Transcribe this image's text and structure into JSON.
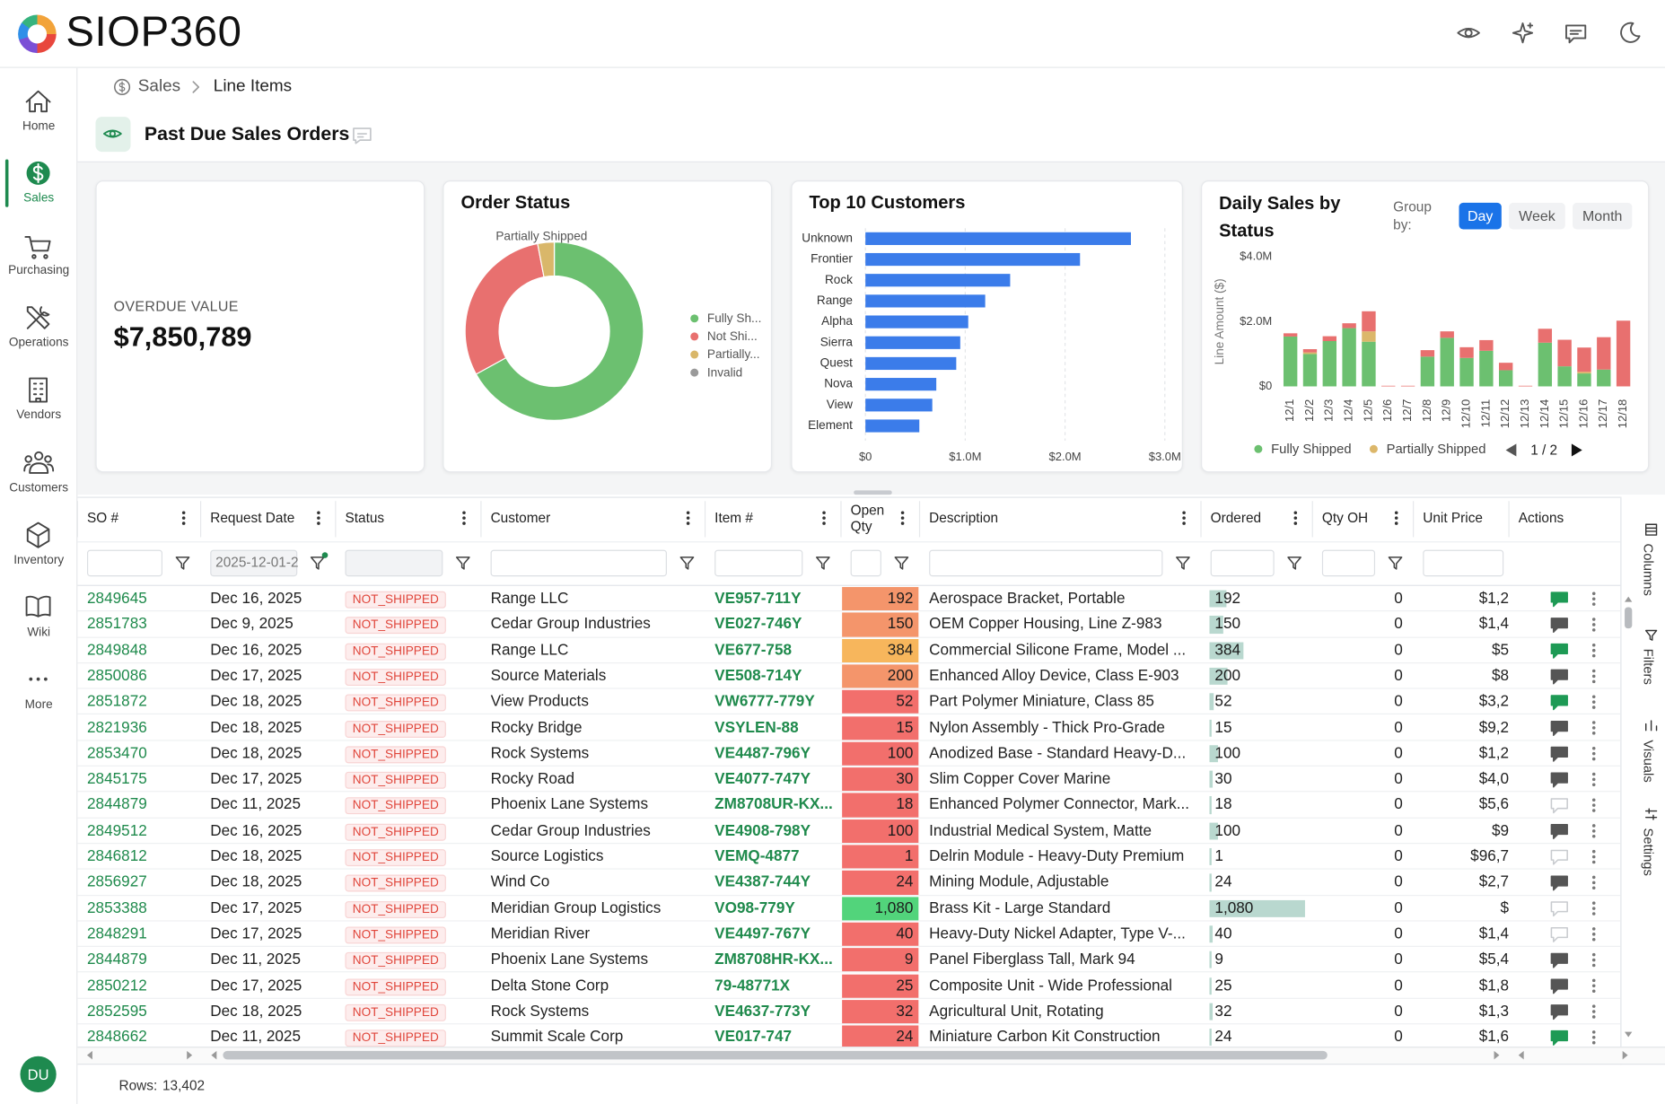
{
  "header": {
    "brand": "SIOP360"
  },
  "nav": {
    "items": [
      "Home",
      "Sales",
      "Purchasing",
      "Operations",
      "Vendors",
      "Customers",
      "Inventory",
      "Wiki",
      "More"
    ]
  },
  "user": {
    "initials": "DU"
  },
  "breadcrumb": [
    "Sales",
    "Line Items"
  ],
  "page": {
    "title": "Past Due Sales Orders"
  },
  "kpi": {
    "label": "OVERDUE VALUE",
    "value": "$7,850,789"
  },
  "chart_data": [
    {
      "type": "pie",
      "donut": true,
      "title": "Order Status",
      "annotation": "Partially Shipped",
      "categories": [
        "Fully Sh...",
        "Not Shi...",
        "Partially...",
        "Invalid"
      ],
      "values": [
        67,
        30,
        3,
        0
      ],
      "colors": [
        "#6cc070",
        "#e8706f",
        "#d9b76a",
        "#9a9a9a"
      ]
    },
    {
      "type": "bar",
      "orientation": "horizontal",
      "title": "Top 10 Customers",
      "categories": [
        "Unknown",
        "Frontier",
        "Rock",
        "Range",
        "Alpha",
        "Sierra",
        "Quest",
        "Nova",
        "View",
        "Element"
      ],
      "values": [
        2660000,
        2150000,
        1450000,
        1200000,
        1030000,
        950000,
        910000,
        710000,
        670000,
        540000
      ],
      "color": "#3b7cea",
      "xlim": [
        0,
        3000000
      ],
      "xticks": [
        {
          "value": 0,
          "label": "$0"
        },
        {
          "value": 1000000,
          "label": "$1.0M"
        },
        {
          "value": 2000000,
          "label": "$2.0M"
        },
        {
          "value": 3000000,
          "label": "$3.0M"
        }
      ],
      "grid": true
    },
    {
      "type": "stacked_bar",
      "title": "Daily Sales by Status",
      "y_label": "Line Amount ($)",
      "categories": [
        "12/1",
        "12/2",
        "12/3",
        "12/4",
        "12/5",
        "12/6",
        "12/7",
        "12/8",
        "12/9",
        "12/10",
        "12/11",
        "12/12",
        "12/13",
        "12/14",
        "12/15",
        "12/16",
        "12/17",
        "12/18"
      ],
      "series": [
        {
          "name": "Fully Shipped",
          "color": "#6cc070",
          "values": [
            1540000,
            1000000,
            1400000,
            1800000,
            1380000,
            0,
            0,
            920000,
            1500000,
            880000,
            1100000,
            500000,
            0,
            1350000,
            620000,
            400000,
            520000,
            0
          ]
        },
        {
          "name": "Partially Shipped",
          "color": "#dcb76a",
          "values": [
            0,
            50000,
            0,
            0,
            320000,
            0,
            0,
            0,
            0,
            0,
            0,
            0,
            0,
            0,
            0,
            50000,
            0,
            0
          ]
        },
        {
          "color": "#e8706f",
          "values": [
            100000,
            100000,
            150000,
            150000,
            620000,
            20000,
            20000,
            200000,
            200000,
            330000,
            330000,
            230000,
            20000,
            430000,
            820000,
            750000,
            1000000,
            2030000
          ]
        }
      ],
      "ylim": [
        0,
        4000000
      ],
      "yticks": [
        {
          "value": 0,
          "label": "$0"
        },
        {
          "value": 2000000,
          "label": "$2.0M"
        },
        {
          "value": 4000000,
          "label": "$4.0M"
        }
      ],
      "grid": false,
      "group_by_label": "Group by:",
      "group_by_options": [
        "Day",
        "Week",
        "Month"
      ],
      "legend_page": "1 / 2"
    }
  ],
  "table": {
    "columns": [
      "SO #",
      "Request Date",
      "Status",
      "Customer",
      "Item #",
      "Open Qty",
      "Description",
      "Ordered",
      "Qty OH",
      "Unit Price",
      "Actions"
    ],
    "date_filter": "2025-12-01-2",
    "rows": [
      [
        "2849645",
        "Dec 16, 2025",
        "NOT_SHIPPED",
        "Range LLC",
        "VE957-711Y",
        "192",
        "Aerospace Bracket, Portable",
        "192",
        "0",
        "$1,2"
      ],
      [
        "2851783",
        "Dec 9, 2025",
        "NOT_SHIPPED",
        "Cedar Group Industries",
        "VE027-746Y",
        "150",
        "OEM Copper Housing, Line Z-983",
        "150",
        "0",
        "$1,4"
      ],
      [
        "2849848",
        "Dec 16, 2025",
        "NOT_SHIPPED",
        "Range LLC",
        "VE677-758",
        "384",
        "Commercial Silicone Frame, Model ...",
        "384",
        "0",
        "$5"
      ],
      [
        "2850086",
        "Dec 17, 2025",
        "NOT_SHIPPED",
        "Source Materials",
        "VE508-714Y",
        "200",
        "Enhanced Alloy Device, Class E-903",
        "200",
        "0",
        "$8"
      ],
      [
        "2851872",
        "Dec 18, 2025",
        "NOT_SHIPPED",
        "View Products",
        "VW6777-779Y",
        "52",
        "Part Polymer Miniature, Class 85",
        "52",
        "0",
        "$3,2"
      ],
      [
        "2821936",
        "Dec 18, 2025",
        "NOT_SHIPPED",
        "Rocky Bridge",
        "VSYLEN-88",
        "15",
        "Nylon Assembly - Thick Pro-Grade",
        "15",
        "0",
        "$9,2"
      ],
      [
        "2853470",
        "Dec 18, 2025",
        "NOT_SHIPPED",
        "Rock Systems",
        "VE4487-796Y",
        "100",
        "Anodized Base - Standard Heavy-D...",
        "100",
        "0",
        "$1,2"
      ],
      [
        "2845175",
        "Dec 17, 2025",
        "NOT_SHIPPED",
        "Rocky Road",
        "VE4077-747Y",
        "30",
        "Slim Copper Cover Marine",
        "30",
        "0",
        "$4,0"
      ],
      [
        "2844879",
        "Dec 11, 2025",
        "NOT_SHIPPED",
        "Phoenix Lane Systems",
        "ZM8708UR-KX...",
        "18",
        "Enhanced Polymer Connector, Mark...",
        "18",
        "0",
        "$5,6"
      ],
      [
        "2849512",
        "Dec 16, 2025",
        "NOT_SHIPPED",
        "Cedar Group Industries",
        "VE4908-798Y",
        "100",
        "Industrial Medical System, Matte",
        "100",
        "0",
        "$9"
      ],
      [
        "2846812",
        "Dec 18, 2025",
        "NOT_SHIPPED",
        "Source Logistics",
        "VEMQ-4877",
        "1",
        "Delrin Module - Heavy-Duty Premium",
        "1",
        "0",
        "$96,7"
      ],
      [
        "2856927",
        "Dec 18, 2025",
        "NOT_SHIPPED",
        "Wind Co",
        "VE4387-744Y",
        "24",
        "Mining Module, Adjustable",
        "24",
        "0",
        "$2,7"
      ],
      [
        "2853388",
        "Dec 17, 2025",
        "NOT_SHIPPED",
        "Meridian Group Logistics",
        "VO98-779Y",
        "1,080",
        "Brass Kit - Large Standard",
        "1,080",
        "0",
        "$"
      ],
      [
        "2848291",
        "Dec 17, 2025",
        "NOT_SHIPPED",
        "Meridian River",
        "VE4497-767Y",
        "40",
        "Heavy-Duty Nickel Adapter, Type V-...",
        "40",
        "0",
        "$1,4"
      ],
      [
        "2844879",
        "Dec 11, 2025",
        "NOT_SHIPPED",
        "Phoenix Lane Systems",
        "ZM8708HR-KX...",
        "9",
        "Panel Fiberglass Tall, Mark 94",
        "9",
        "0",
        "$5,4"
      ],
      [
        "2850212",
        "Dec 17, 2025",
        "NOT_SHIPPED",
        "Delta Stone Corp",
        "79-48771X",
        "25",
        "Composite Unit - Wide Professional",
        "25",
        "0",
        "$1,8"
      ],
      [
        "2852595",
        "Dec 18, 2025",
        "NOT_SHIPPED",
        "Rock Systems",
        "VE4637-773Y",
        "32",
        "Agricultural Unit, Rotating",
        "32",
        "0",
        "$1,3"
      ],
      [
        "2848662",
        "Dec 11, 2025",
        "NOT_SHIPPED",
        "Summit Scale Corp",
        "VE017-747",
        "24",
        "Miniature Carbon Kit Construction",
        "24",
        "0",
        "$1,6"
      ]
    ]
  },
  "footer": {
    "label": "Rows:",
    "value": "13,402"
  },
  "side_panel": [
    "Columns",
    "Filters",
    "Visuals",
    "Settings"
  ]
}
